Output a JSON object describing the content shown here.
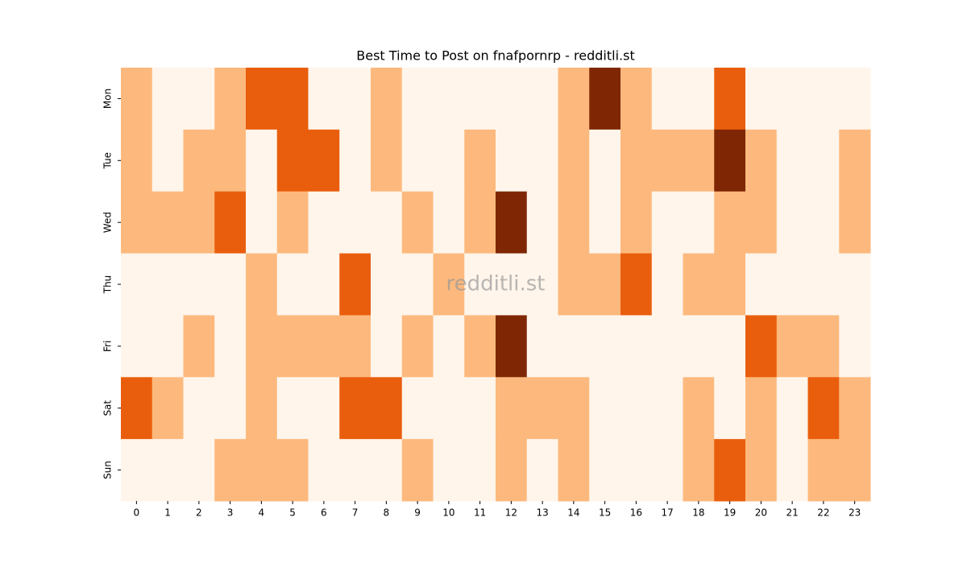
{
  "chart_data": {
    "type": "heatmap",
    "title": "Best Time to Post on fnafpornrp - redditli.st",
    "watermark": "redditli.st",
    "x": [
      0,
      1,
      2,
      3,
      4,
      5,
      6,
      7,
      8,
      9,
      10,
      11,
      12,
      13,
      14,
      15,
      16,
      17,
      18,
      19,
      20,
      21,
      22,
      23
    ],
    "y": [
      "Mon",
      "Tue",
      "Wed",
      "Thu",
      "Fri",
      "Sat",
      "Sun"
    ],
    "colors": [
      "#fff5eb",
      "#fdb97d",
      "#e95e0d",
      "#7f2704"
    ],
    "values": [
      [
        1,
        0,
        0,
        1,
        2,
        2,
        0,
        0,
        1,
        0,
        0,
        0,
        0,
        0,
        1,
        3,
        1,
        0,
        0,
        2,
        0,
        0,
        0,
        0
      ],
      [
        1,
        0,
        1,
        1,
        0,
        2,
        2,
        0,
        1,
        0,
        0,
        1,
        0,
        0,
        1,
        0,
        1,
        1,
        1,
        3,
        1,
        0,
        0,
        1
      ],
      [
        1,
        1,
        1,
        2,
        0,
        1,
        0,
        0,
        0,
        1,
        0,
        1,
        3,
        0,
        1,
        0,
        1,
        0,
        0,
        1,
        1,
        0,
        0,
        1
      ],
      [
        0,
        0,
        0,
        0,
        1,
        0,
        0,
        2,
        0,
        0,
        1,
        0,
        0,
        0,
        1,
        1,
        2,
        0,
        1,
        1,
        0,
        0,
        0,
        0
      ],
      [
        0,
        0,
        1,
        0,
        1,
        1,
        1,
        1,
        0,
        1,
        0,
        1,
        3,
        0,
        0,
        0,
        0,
        0,
        0,
        0,
        2,
        1,
        1,
        0
      ],
      [
        2,
        1,
        0,
        0,
        1,
        0,
        0,
        2,
        2,
        0,
        0,
        0,
        1,
        1,
        1,
        0,
        0,
        0,
        1,
        0,
        1,
        0,
        2,
        1
      ],
      [
        0,
        0,
        0,
        1,
        1,
        1,
        0,
        0,
        0,
        1,
        0,
        0,
        1,
        0,
        1,
        0,
        0,
        0,
        1,
        2,
        1,
        0,
        1,
        1
      ]
    ]
  }
}
